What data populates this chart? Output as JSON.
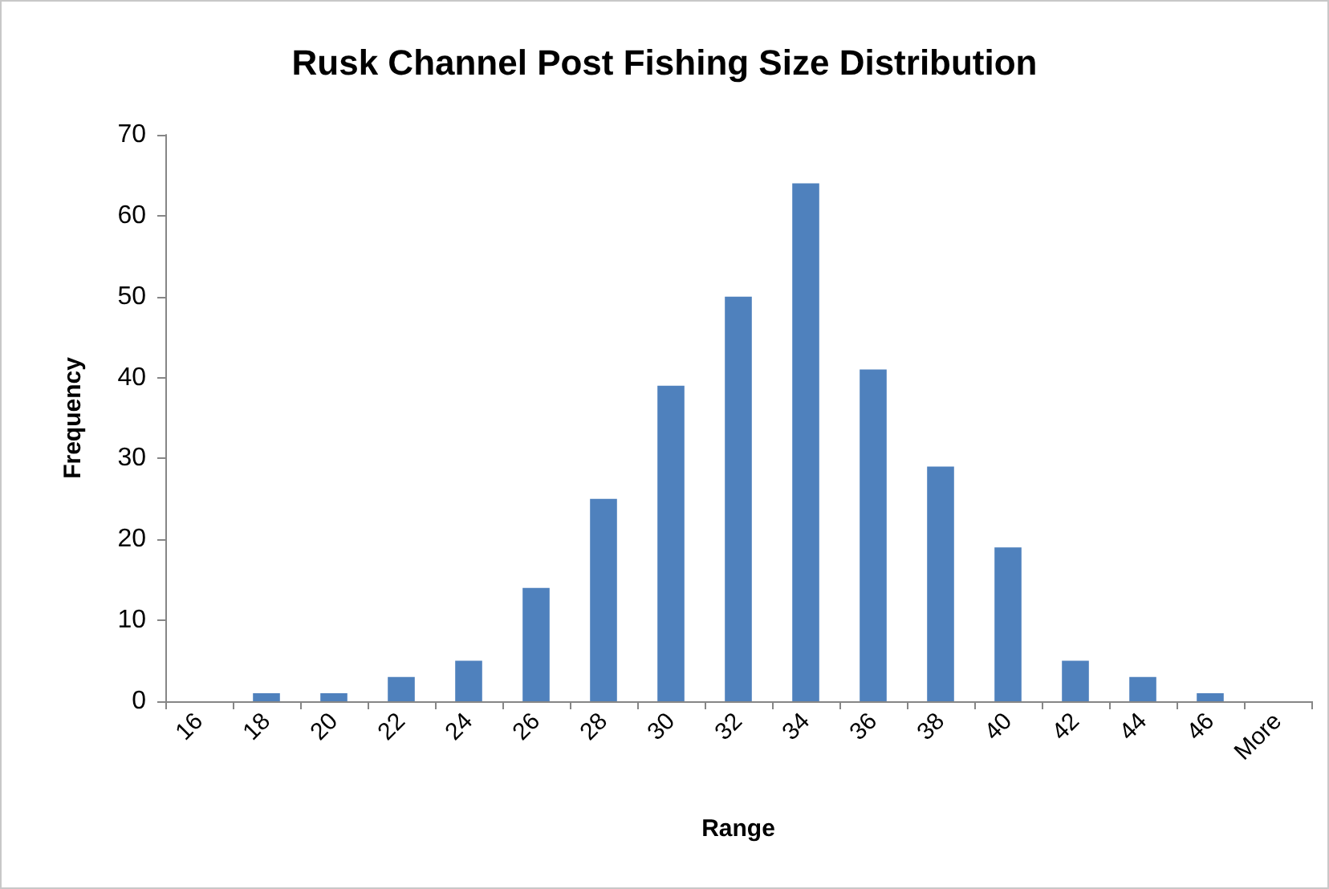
{
  "chart_data": {
    "type": "bar",
    "title": "Rusk Channel Post Fishing Size Distribution",
    "xlabel": "Range",
    "ylabel": "Frequency",
    "categories": [
      "16",
      "18",
      "20",
      "22",
      "24",
      "26",
      "28",
      "30",
      "32",
      "34",
      "36",
      "38",
      "40",
      "42",
      "44",
      "46",
      "More"
    ],
    "values": [
      0,
      1,
      1,
      3,
      5,
      14,
      25,
      39,
      50,
      64,
      41,
      29,
      19,
      5,
      3,
      1,
      0
    ],
    "color": "#4f81bd",
    "ylim": [
      0,
      70
    ],
    "yticks": [
      0,
      10,
      20,
      30,
      40,
      50,
      60,
      70
    ]
  }
}
